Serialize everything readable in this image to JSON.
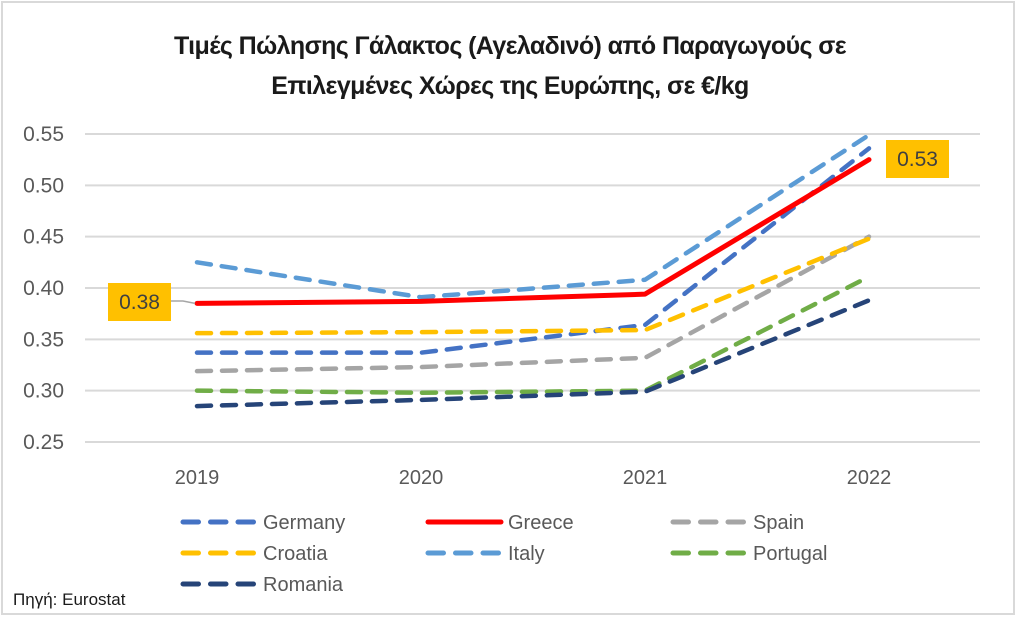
{
  "chart_data": {
    "type": "line",
    "title_line1": "Τιμές Πώλησης Γάλακτος (Αγελαδινό) από Παραγωγούς σε",
    "title_line2": "Επιλεγμένες Χώρες της Ευρώπης, σε €/kg",
    "xlabel": "",
    "ylabel": "",
    "categories": [
      "2019",
      "2020",
      "2021",
      "2022"
    ],
    "ylim": [
      0.25,
      0.55
    ],
    "yticks": [
      "0.25",
      "0.30",
      "0.35",
      "0.40",
      "0.45",
      "0.50",
      "0.55"
    ],
    "grid": true,
    "legend_position": "bottom",
    "series": [
      {
        "name": "Germany",
        "color": "#4472c4",
        "style": "dashed",
        "values": [
          0.337,
          0.337,
          0.364,
          0.536
        ]
      },
      {
        "name": "Greece",
        "color": "#ff0000",
        "style": "solid",
        "values": [
          0.385,
          0.387,
          0.394,
          0.525
        ]
      },
      {
        "name": "Spain",
        "color": "#a5a5a5",
        "style": "dashed",
        "values": [
          0.319,
          0.323,
          0.332,
          0.45
        ]
      },
      {
        "name": "Croatia",
        "color": "#ffc000",
        "style": "dashed",
        "values": [
          0.356,
          0.357,
          0.359,
          0.448
        ]
      },
      {
        "name": "Italy",
        "color": "#5b9bd5",
        "style": "dashed",
        "values": [
          0.425,
          0.391,
          0.408,
          0.549
        ]
      },
      {
        "name": "Portugal",
        "color": "#70ad47",
        "style": "dashed",
        "values": [
          0.3,
          0.298,
          0.3,
          0.411
        ]
      },
      {
        "name": "Romania",
        "color": "#264478",
        "style": "dashed",
        "values": [
          0.285,
          0.291,
          0.299,
          0.388
        ]
      }
    ],
    "annotations": [
      {
        "series": "Greece",
        "category": "2019",
        "text": "0.38",
        "background": "#ffc000"
      },
      {
        "series": "Greece",
        "category": "2022",
        "text": "0.53",
        "background": "#ffc000"
      }
    ]
  },
  "source": "Πηγή: Eurostat"
}
